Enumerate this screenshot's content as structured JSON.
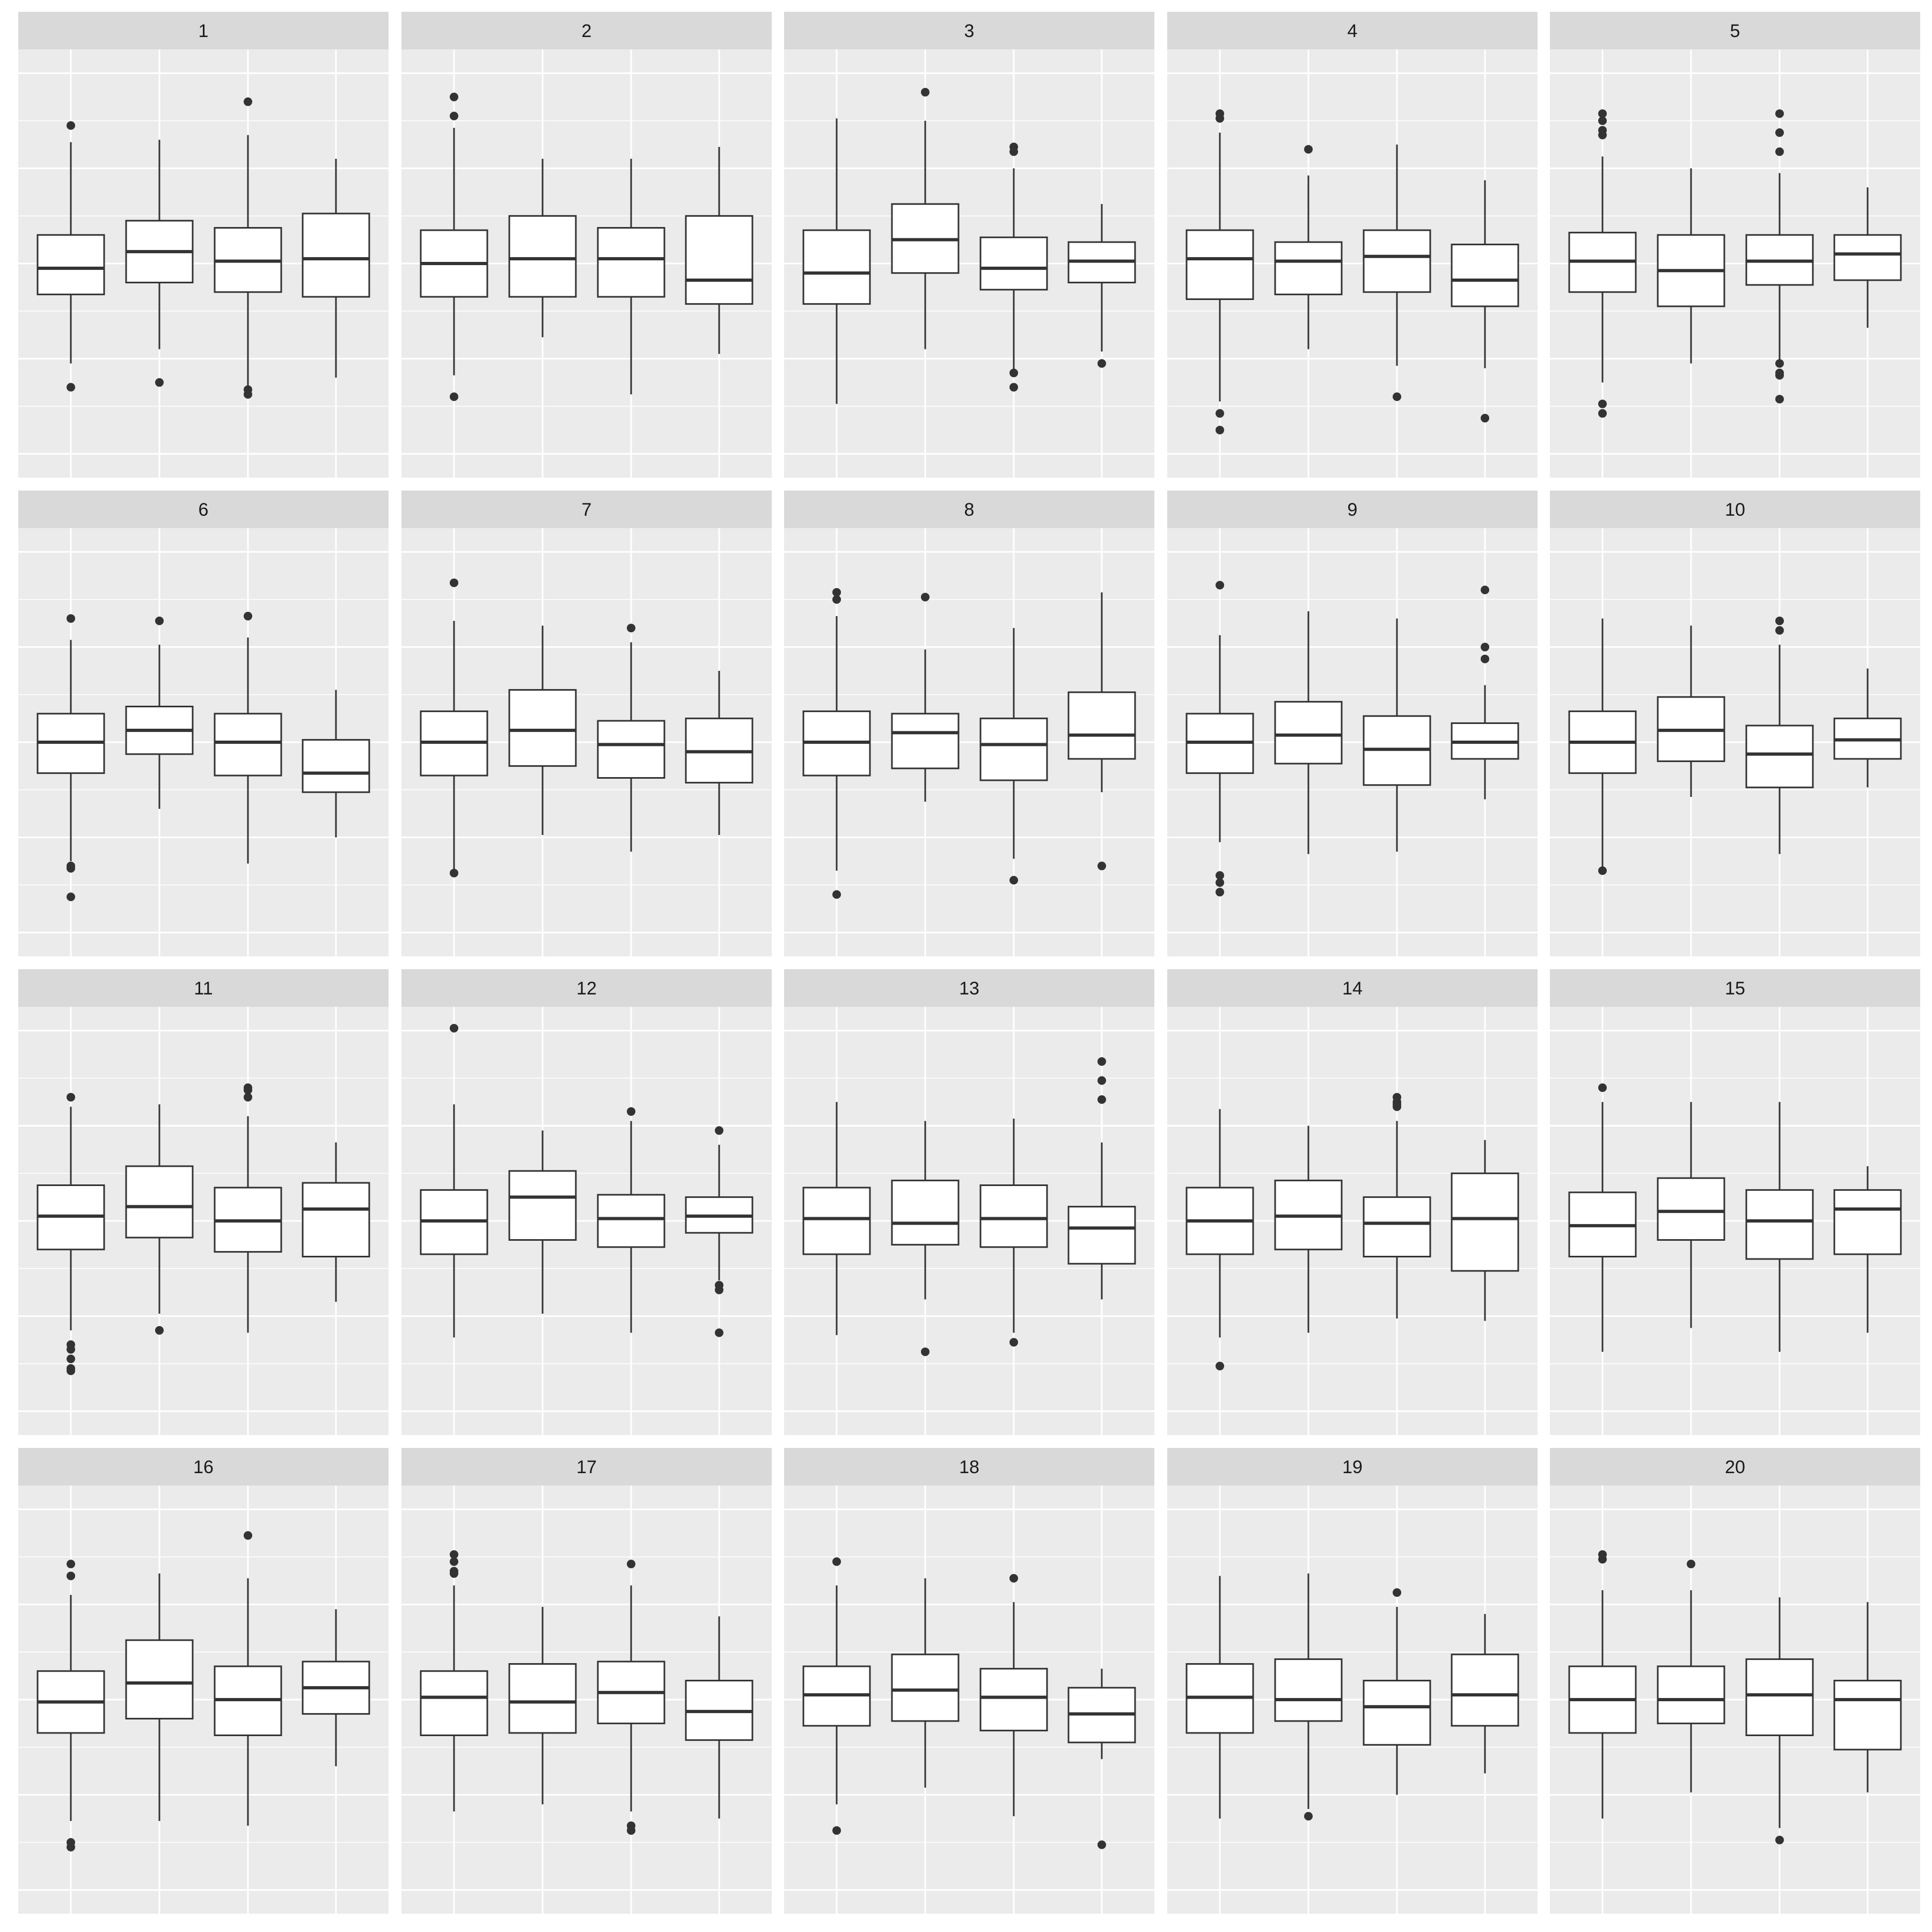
{
  "chart_data": {
    "type": "boxplot",
    "facet_layout": {
      "rows": 4,
      "cols": 5
    },
    "groups_per_panel": 4,
    "x_tick_labels_shown": false,
    "y_tick_labels_shown": false,
    "title": "",
    "xlabel": "",
    "ylabel": "",
    "ylim": [
      -4.5,
      4.5
    ],
    "y_major_breaks": [
      -4,
      -2,
      0,
      2,
      4
    ],
    "grid": true,
    "panels": [
      {
        "label": "1",
        "boxes": [
          {
            "lower": -2.1,
            "q1": -0.65,
            "median": -0.1,
            "q3": 0.6,
            "upper": 2.55,
            "outliers": [
              2.9,
              -2.6
            ]
          },
          {
            "lower": -1.8,
            "q1": -0.4,
            "median": 0.25,
            "q3": 0.9,
            "upper": 2.6,
            "outliers": [
              -2.5
            ]
          },
          {
            "lower": -2.7,
            "q1": -0.6,
            "median": 0.05,
            "q3": 0.75,
            "upper": 2.7,
            "outliers": [
              3.4,
              -2.65,
              -2.75
            ]
          },
          {
            "lower": -2.4,
            "q1": -0.7,
            "median": 0.1,
            "q3": 1.05,
            "upper": 2.2,
            "outliers": []
          }
        ]
      },
      {
        "label": "2",
        "boxes": [
          {
            "lower": -2.35,
            "q1": -0.7,
            "median": 0.0,
            "q3": 0.7,
            "upper": 2.85,
            "outliers": [
              3.5,
              3.1,
              -2.8
            ]
          },
          {
            "lower": -1.55,
            "q1": -0.7,
            "median": 0.1,
            "q3": 1.0,
            "upper": 2.2,
            "outliers": []
          },
          {
            "lower": -2.75,
            "q1": -0.7,
            "median": 0.1,
            "q3": 0.75,
            "upper": 2.2,
            "outliers": []
          },
          {
            "lower": -1.9,
            "q1": -0.85,
            "median": -0.35,
            "q3": 1.0,
            "upper": 2.45,
            "outliers": []
          }
        ]
      },
      {
        "label": "3",
        "boxes": [
          {
            "lower": -2.95,
            "q1": -0.85,
            "median": -0.2,
            "q3": 0.7,
            "upper": 3.05,
            "outliers": []
          },
          {
            "lower": -1.8,
            "q1": -0.2,
            "median": 0.5,
            "q3": 1.25,
            "upper": 3.0,
            "outliers": [
              3.6
            ]
          },
          {
            "lower": -2.3,
            "q1": -0.55,
            "median": -0.1,
            "q3": 0.55,
            "upper": 2.0,
            "outliers": [
              2.45,
              2.35,
              -2.3,
              -2.6
            ]
          },
          {
            "lower": -1.85,
            "q1": -0.4,
            "median": 0.05,
            "q3": 0.45,
            "upper": 1.25,
            "outliers": [
              -2.1
            ]
          }
        ]
      },
      {
        "label": "4",
        "boxes": [
          {
            "lower": -2.9,
            "q1": -0.75,
            "median": 0.1,
            "q3": 0.7,
            "upper": 2.75,
            "outliers": [
              3.15,
              3.05,
              -3.15,
              -3.5
            ]
          },
          {
            "lower": -1.8,
            "q1": -0.65,
            "median": 0.05,
            "q3": 0.45,
            "upper": 1.85,
            "outliers": [
              2.4
            ]
          },
          {
            "lower": -2.15,
            "q1": -0.6,
            "median": 0.15,
            "q3": 0.7,
            "upper": 2.5,
            "outliers": [
              -2.8
            ]
          },
          {
            "lower": -2.2,
            "q1": -0.9,
            "median": -0.35,
            "q3": 0.4,
            "upper": 1.75,
            "outliers": [
              -3.25
            ]
          }
        ]
      },
      {
        "label": "5",
        "boxes": [
          {
            "lower": -2.5,
            "q1": -0.6,
            "median": 0.05,
            "q3": 0.65,
            "upper": 2.25,
            "outliers": [
              3.15,
              3.0,
              2.8,
              2.7,
              -2.95,
              -3.15
            ]
          },
          {
            "lower": -2.1,
            "q1": -0.9,
            "median": -0.15,
            "q3": 0.6,
            "upper": 2.0,
            "outliers": []
          },
          {
            "lower": -2.15,
            "q1": -0.45,
            "median": 0.05,
            "q3": 0.6,
            "upper": 1.9,
            "outliers": [
              3.15,
              2.75,
              2.35,
              -2.1,
              -2.3,
              -2.35,
              -2.85
            ]
          },
          {
            "lower": -1.35,
            "q1": -0.35,
            "median": 0.2,
            "q3": 0.6,
            "upper": 1.6,
            "outliers": []
          }
        ]
      },
      {
        "label": "6",
        "boxes": [
          {
            "lower": -2.5,
            "q1": -0.65,
            "median": 0.0,
            "q3": 0.6,
            "upper": 2.15,
            "outliers": [
              2.6,
              -2.6,
              -2.65,
              -3.25
            ]
          },
          {
            "lower": -1.4,
            "q1": -0.25,
            "median": 0.25,
            "q3": 0.75,
            "upper": 2.05,
            "outliers": [
              2.55
            ]
          },
          {
            "lower": -2.55,
            "q1": -0.7,
            "median": 0.0,
            "q3": 0.6,
            "upper": 2.2,
            "outliers": [
              2.65
            ]
          },
          {
            "lower": -2.0,
            "q1": -1.05,
            "median": -0.65,
            "q3": 0.05,
            "upper": 1.1,
            "outliers": []
          }
        ]
      },
      {
        "label": "7",
        "boxes": [
          {
            "lower": -2.75,
            "q1": -0.7,
            "median": 0.0,
            "q3": 0.65,
            "upper": 2.55,
            "outliers": [
              3.35,
              -2.75
            ]
          },
          {
            "lower": -1.95,
            "q1": -0.5,
            "median": 0.25,
            "q3": 1.1,
            "upper": 2.45,
            "outliers": []
          },
          {
            "lower": -2.3,
            "q1": -0.75,
            "median": -0.05,
            "q3": 0.45,
            "upper": 2.1,
            "outliers": [
              2.4
            ]
          },
          {
            "lower": -1.95,
            "q1": -0.85,
            "median": -0.2,
            "q3": 0.5,
            "upper": 1.5,
            "outliers": []
          }
        ]
      },
      {
        "label": "8",
        "boxes": [
          {
            "lower": -2.7,
            "q1": -0.7,
            "median": 0.0,
            "q3": 0.65,
            "upper": 2.65,
            "outliers": [
              3.15,
              3.0,
              -3.2
            ]
          },
          {
            "lower": -1.25,
            "q1": -0.55,
            "median": 0.2,
            "q3": 0.6,
            "upper": 1.95,
            "outliers": [
              3.05
            ]
          },
          {
            "lower": -2.45,
            "q1": -0.8,
            "median": -0.05,
            "q3": 0.5,
            "upper": 2.4,
            "outliers": [
              -2.9
            ]
          },
          {
            "lower": -1.05,
            "q1": -0.35,
            "median": 0.15,
            "q3": 1.05,
            "upper": 3.15,
            "outliers": [
              -2.6
            ]
          }
        ]
      },
      {
        "label": "9",
        "boxes": [
          {
            "lower": -2.1,
            "q1": -0.65,
            "median": 0.0,
            "q3": 0.6,
            "upper": 2.25,
            "outliers": [
              3.3,
              -2.8,
              -2.95,
              -3.15
            ]
          },
          {
            "lower": -2.35,
            "q1": -0.45,
            "median": 0.15,
            "q3": 0.85,
            "upper": 2.75,
            "outliers": []
          },
          {
            "lower": -2.3,
            "q1": -0.9,
            "median": -0.15,
            "q3": 0.55,
            "upper": 2.6,
            "outliers": []
          },
          {
            "lower": -1.2,
            "q1": -0.35,
            "median": 0.0,
            "q3": 0.4,
            "upper": 1.2,
            "outliers": [
              3.2,
              2.0,
              1.75
            ]
          }
        ]
      },
      {
        "label": "10",
        "boxes": [
          {
            "lower": -2.7,
            "q1": -0.65,
            "median": 0.0,
            "q3": 0.65,
            "upper": 2.6,
            "outliers": [
              -2.7
            ]
          },
          {
            "lower": -1.15,
            "q1": -0.4,
            "median": 0.25,
            "q3": 0.95,
            "upper": 2.45,
            "outliers": []
          },
          {
            "lower": -2.35,
            "q1": -0.95,
            "median": -0.25,
            "q3": 0.35,
            "upper": 2.05,
            "outliers": [
              2.55,
              2.35
            ]
          },
          {
            "lower": -0.95,
            "q1": -0.35,
            "median": 0.05,
            "q3": 0.5,
            "upper": 1.55,
            "outliers": []
          }
        ]
      },
      {
        "label": "11",
        "boxes": [
          {
            "lower": -2.3,
            "q1": -0.6,
            "median": 0.1,
            "q3": 0.75,
            "upper": 2.4,
            "outliers": [
              2.6,
              -2.6,
              -2.7,
              -2.9,
              -3.1,
              -3.15
            ]
          },
          {
            "lower": -1.95,
            "q1": -0.35,
            "median": 0.3,
            "q3": 1.15,
            "upper": 2.45,
            "outliers": [
              -2.3
            ]
          },
          {
            "lower": -2.35,
            "q1": -0.65,
            "median": 0.0,
            "q3": 0.7,
            "upper": 2.2,
            "outliers": [
              2.8,
              2.75,
              2.6
            ]
          },
          {
            "lower": -1.7,
            "q1": -0.75,
            "median": 0.25,
            "q3": 0.8,
            "upper": 1.65,
            "outliers": []
          }
        ]
      },
      {
        "label": "12",
        "boxes": [
          {
            "lower": -2.45,
            "q1": -0.7,
            "median": 0.0,
            "q3": 0.65,
            "upper": 2.45,
            "outliers": [
              4.05
            ]
          },
          {
            "lower": -1.95,
            "q1": -0.4,
            "median": 0.5,
            "q3": 1.05,
            "upper": 1.9,
            "outliers": []
          },
          {
            "lower": -2.35,
            "q1": -0.55,
            "median": 0.05,
            "q3": 0.55,
            "upper": 2.1,
            "outliers": [
              2.3
            ]
          },
          {
            "lower": -1.25,
            "q1": -0.25,
            "median": 0.1,
            "q3": 0.5,
            "upper": 1.6,
            "outliers": [
              1.9,
              -1.35,
              -1.45,
              -2.35
            ]
          }
        ]
      },
      {
        "label": "13",
        "boxes": [
          {
            "lower": -2.4,
            "q1": -0.7,
            "median": 0.05,
            "q3": 0.7,
            "upper": 2.5,
            "outliers": []
          },
          {
            "lower": -1.65,
            "q1": -0.5,
            "median": -0.05,
            "q3": 0.85,
            "upper": 2.1,
            "outliers": [
              -2.75
            ]
          },
          {
            "lower": -2.35,
            "q1": -0.55,
            "median": 0.05,
            "q3": 0.75,
            "upper": 2.15,
            "outliers": [
              -2.55
            ]
          },
          {
            "lower": -1.65,
            "q1": -0.9,
            "median": -0.15,
            "q3": 0.3,
            "upper": 1.65,
            "outliers": [
              3.35,
              2.95,
              2.55
            ]
          }
        ]
      },
      {
        "label": "14",
        "boxes": [
          {
            "lower": -2.45,
            "q1": -0.7,
            "median": 0.0,
            "q3": 0.7,
            "upper": 2.35,
            "outliers": [
              -3.05
            ]
          },
          {
            "lower": -2.35,
            "q1": -0.6,
            "median": 0.1,
            "q3": 0.85,
            "upper": 2.0,
            "outliers": []
          },
          {
            "lower": -2.05,
            "q1": -0.75,
            "median": -0.05,
            "q3": 0.5,
            "upper": 2.1,
            "outliers": [
              2.6,
              2.5,
              2.45,
              2.4
            ]
          },
          {
            "lower": -2.1,
            "q1": -1.05,
            "median": 0.05,
            "q3": 1.0,
            "upper": 1.7,
            "outliers": []
          }
        ]
      },
      {
        "label": "15",
        "boxes": [
          {
            "lower": -2.75,
            "q1": -0.75,
            "median": -0.1,
            "q3": 0.6,
            "upper": 2.5,
            "outliers": [
              2.8
            ]
          },
          {
            "lower": -2.25,
            "q1": -0.4,
            "median": 0.2,
            "q3": 0.9,
            "upper": 2.5,
            "outliers": []
          },
          {
            "lower": -2.75,
            "q1": -0.8,
            "median": 0.0,
            "q3": 0.65,
            "upper": 2.5,
            "outliers": []
          },
          {
            "lower": -2.35,
            "q1": -0.7,
            "median": 0.25,
            "q3": 0.65,
            "upper": 1.15,
            "outliers": []
          }
        ]
      },
      {
        "label": "16",
        "boxes": [
          {
            "lower": -2.55,
            "q1": -0.7,
            "median": -0.05,
            "q3": 0.6,
            "upper": 2.2,
            "outliers": [
              2.85,
              2.6,
              -3.0,
              -3.1
            ]
          },
          {
            "lower": -2.55,
            "q1": -0.4,
            "median": 0.35,
            "q3": 1.25,
            "upper": 2.65,
            "outliers": []
          },
          {
            "lower": -2.65,
            "q1": -0.75,
            "median": 0.0,
            "q3": 0.7,
            "upper": 2.55,
            "outliers": [
              3.45
            ]
          },
          {
            "lower": -1.4,
            "q1": -0.3,
            "median": 0.25,
            "q3": 0.8,
            "upper": 1.9,
            "outliers": []
          }
        ]
      },
      {
        "label": "17",
        "boxes": [
          {
            "lower": -2.35,
            "q1": -0.75,
            "median": 0.05,
            "q3": 0.6,
            "upper": 2.4,
            "outliers": [
              3.05,
              2.9,
              2.7,
              2.65
            ]
          },
          {
            "lower": -2.2,
            "q1": -0.7,
            "median": -0.05,
            "q3": 0.75,
            "upper": 1.95,
            "outliers": []
          },
          {
            "lower": -2.35,
            "q1": -0.5,
            "median": 0.15,
            "q3": 0.8,
            "upper": 2.4,
            "outliers": [
              2.85,
              -2.65,
              -2.75
            ]
          },
          {
            "lower": -2.5,
            "q1": -0.85,
            "median": -0.25,
            "q3": 0.4,
            "upper": 1.75,
            "outliers": []
          }
        ]
      },
      {
        "label": "18",
        "boxes": [
          {
            "lower": -2.2,
            "q1": -0.55,
            "median": 0.1,
            "q3": 0.7,
            "upper": 2.4,
            "outliers": [
              2.9,
              -2.75
            ]
          },
          {
            "lower": -1.85,
            "q1": -0.45,
            "median": 0.2,
            "q3": 0.95,
            "upper": 2.55,
            "outliers": []
          },
          {
            "lower": -2.45,
            "q1": -0.65,
            "median": 0.05,
            "q3": 0.65,
            "upper": 2.05,
            "outliers": [
              2.55
            ]
          },
          {
            "lower": -1.25,
            "q1": -0.9,
            "median": -0.3,
            "q3": 0.25,
            "upper": 0.65,
            "outliers": [
              -3.05
            ]
          }
        ]
      },
      {
        "label": "19",
        "boxes": [
          {
            "lower": -2.5,
            "q1": -0.7,
            "median": 0.05,
            "q3": 0.75,
            "upper": 2.6,
            "outliers": []
          },
          {
            "lower": -2.3,
            "q1": -0.45,
            "median": 0.0,
            "q3": 0.85,
            "upper": 2.65,
            "outliers": [
              -2.45
            ]
          },
          {
            "lower": -2.0,
            "q1": -0.95,
            "median": -0.15,
            "q3": 0.4,
            "upper": 1.95,
            "outliers": [
              2.25
            ]
          },
          {
            "lower": -1.55,
            "q1": -0.55,
            "median": 0.1,
            "q3": 0.95,
            "upper": 1.8,
            "outliers": []
          }
        ]
      },
      {
        "label": "20",
        "boxes": [
          {
            "lower": -2.5,
            "q1": -0.7,
            "median": 0.0,
            "q3": 0.7,
            "upper": 2.3,
            "outliers": [
              3.05,
              2.95
            ]
          },
          {
            "lower": -1.95,
            "q1": -0.5,
            "median": 0.0,
            "q3": 0.7,
            "upper": 2.3,
            "outliers": [
              2.85
            ]
          },
          {
            "lower": -2.7,
            "q1": -0.75,
            "median": 0.1,
            "q3": 0.85,
            "upper": 2.15,
            "outliers": [
              -2.95
            ]
          },
          {
            "lower": -1.95,
            "q1": -1.05,
            "median": 0.0,
            "q3": 0.4,
            "upper": 2.05,
            "outliers": []
          }
        ]
      }
    ]
  }
}
